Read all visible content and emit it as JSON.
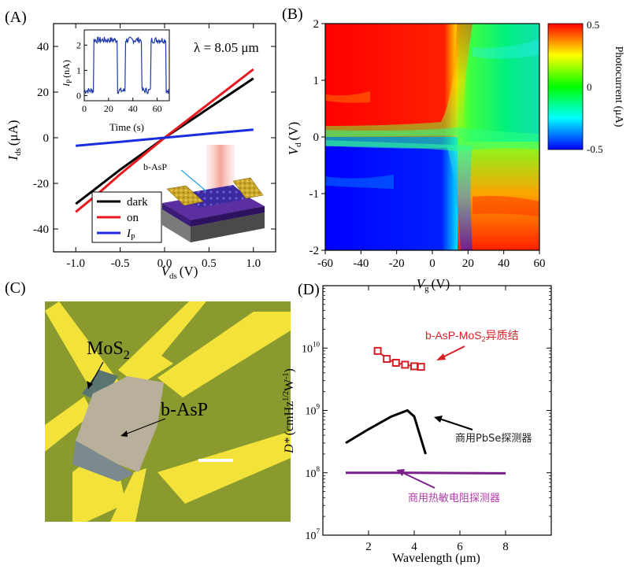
{
  "panel_labels": [
    "(A)",
    "(B)",
    "(C)",
    "(D)"
  ],
  "colors": {
    "dark": "#000000",
    "on": "#e8191e",
    "ip": "#1a2ee0",
    "inset": "#1f3aa8",
    "heterojunction": "#d81e24",
    "pbse": "#000000",
    "thermistor": "#7b1f8c",
    "thermistor_label": "#b23aa8",
    "micro_bg": "#8a9a2e",
    "electrode": "#f2e23a"
  },
  "chart_data": [
    {
      "panel": "(A)",
      "type": "line",
      "xlabel": "V",
      "xlabel_sub": "ds",
      "xlabel_unit": "(V)",
      "ylabel": "I",
      "ylabel_sub": "ds",
      "ylabel_unit": "(μA)",
      "xlim": [
        -1.25,
        1.25
      ],
      "ylim": [
        -50,
        50
      ],
      "xticks": [
        -1.0,
        -0.5,
        0.0,
        0.5,
        1.0
      ],
      "xtick_labels": [
        "-1.0",
        "-0.5",
        "0.0",
        "0.5",
        "1.0"
      ],
      "yticks": [
        -40,
        -20,
        0,
        20,
        40
      ],
      "ytick_labels": [
        "-40",
        "-20",
        "0",
        "20",
        "40"
      ],
      "annotation_lambda": "λ = 8.05 μm",
      "device_label": "b-AsP",
      "legend": {
        "placement": "bottom-left",
        "entries": [
          "dark",
          "on",
          "I"
        ],
        "entry_subs": [
          "",
          "",
          "P"
        ]
      },
      "series": [
        {
          "name": "dark",
          "x": [
            -1.0,
            -0.75,
            -0.5,
            -0.25,
            0.0,
            0.25,
            0.5,
            0.75,
            1.0
          ],
          "y": [
            -29,
            -21.5,
            -14,
            -7,
            0,
            6.5,
            13,
            19.5,
            26
          ]
        },
        {
          "name": "on",
          "x": [
            -1.0,
            -0.75,
            -0.5,
            -0.25,
            0.0,
            0.25,
            0.5,
            0.75,
            1.0
          ],
          "y": [
            -32.5,
            -24.5,
            -16,
            -8,
            0,
            7.5,
            15,
            22.5,
            30
          ]
        },
        {
          "name": "I_P",
          "x": [
            -1.0,
            -0.5,
            0.0,
            0.5,
            1.0
          ],
          "y": [
            -3.5,
            -1.8,
            0,
            1.8,
            3.5
          ]
        }
      ],
      "inset": {
        "xlabel": "Time (s)",
        "ylabel": "I",
        "ylabel_sub": "P",
        "ylabel_unit": "(nA)",
        "xlim": [
          0,
          70
        ],
        "ylim": [
          -0.2,
          2.6
        ],
        "xticks": [
          0,
          20,
          40,
          60
        ],
        "xtick_labels": [
          "0",
          "20",
          "40",
          "60"
        ],
        "yticks": [
          0,
          1,
          2
        ],
        "ytick_labels": [
          "0",
          "1",
          "2"
        ],
        "on_intervals": [
          [
            8,
            27
          ],
          [
            34,
            47
          ],
          [
            55,
            67
          ]
        ],
        "on_level": 2.2,
        "off_level": 0.2
      }
    },
    {
      "panel": "(B)",
      "type": "heatmap",
      "xlabel": "V",
      "xlabel_sub": "g",
      "xlabel_unit": "(V)",
      "ylabel": "V",
      "ylabel_sub": "d",
      "ylabel_unit": "(V)",
      "xlim": [
        -60,
        60
      ],
      "ylim": [
        -2,
        2
      ],
      "xticks": [
        -60,
        -40,
        -20,
        0,
        20,
        40,
        60
      ],
      "xtick_labels": [
        "-60",
        "-40",
        "-20",
        "0",
        "20",
        "40",
        "60"
      ],
      "yticks": [
        -2,
        -1,
        0,
        1,
        2
      ],
      "ytick_labels": [
        "-2",
        "-1",
        "0",
        "1",
        "2"
      ],
      "colorbar": {
        "label": "Photocurrent (μA)",
        "min": -0.5,
        "max": 0.5,
        "tick_labels": [
          "0.5",
          "0",
          "-0.5"
        ]
      },
      "regions": [
        {
          "quadrant": "Vg<17, Vd>0",
          "value": 0.5
        },
        {
          "quadrant": "Vg<17, Vd<0",
          "value": -0.5
        },
        {
          "quadrant": "Vg>17, Vd>0",
          "value": -0.05
        },
        {
          "quadrant": "Vg>17, Vd<0",
          "value": 0.4
        }
      ]
    },
    {
      "panel": "(D)",
      "type": "line",
      "xlabel": "Wavelength (μm)",
      "ylabel": "D*",
      "ylabel_unit": "(cmHz",
      "ylabel_sup1": "1/2",
      "ylabel_mid": "W",
      "ylabel_sup2": "-1",
      "ylabel_end": ")",
      "xlim": [
        0,
        10
      ],
      "ylim_log10": [
        7,
        11
      ],
      "yscale": "log",
      "xticks": [
        2,
        4,
        6,
        8
      ],
      "xtick_labels": [
        "2",
        "4",
        "6",
        "8"
      ],
      "ytick_log10": [
        7,
        8,
        9,
        10
      ],
      "ytick_labels": [
        "10",
        "10",
        "10",
        "10"
      ],
      "ytick_exponents": [
        "7",
        "8",
        "9",
        "10"
      ],
      "series": [
        {
          "name": "b-AsP-MoS₂异质结",
          "label_main": "b-AsP-MoS",
          "label_sub": "2",
          "label_tail": "异质结",
          "marker": "square",
          "x": [
            2.4,
            2.8,
            3.2,
            3.6,
            4.0,
            4.3
          ],
          "y": [
            9000000000.0,
            6700000000.0,
            5800000000.0,
            5400000000.0,
            5100000000.0,
            5000000000.0
          ]
        },
        {
          "name": "商用PbSe探测器",
          "label_main": "商用PbSe探测器",
          "x": [
            1.0,
            2.0,
            3.0,
            3.7,
            4.0,
            4.5
          ],
          "y": [
            300000000.0,
            500000000.0,
            800000000.0,
            1000000000.0,
            800000000.0,
            200000000.0
          ]
        },
        {
          "name": "商用热敏电阻探测器",
          "label_main": "商用热敏电阻探测器",
          "x": [
            1.0,
            2.0,
            4.0,
            6.0,
            8.0
          ],
          "y": [
            100000000.0,
            100000000.0,
            100000000.0,
            99000000.0,
            98000000.0
          ]
        }
      ]
    }
  ],
  "panel_c": {
    "labels": {
      "mos2_main": "MoS",
      "mos2_sub": "2",
      "basp": "b-AsP"
    }
  }
}
